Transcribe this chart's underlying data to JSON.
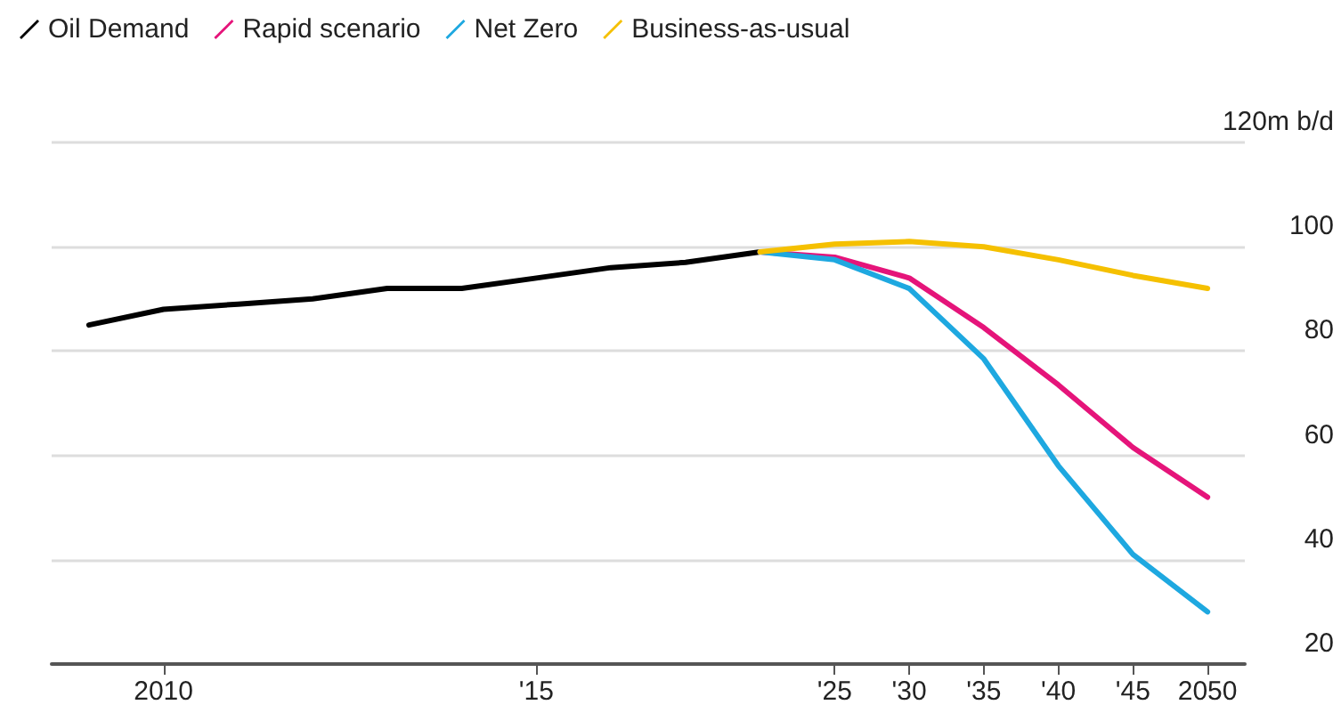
{
  "chart_data": {
    "type": "line",
    "categories": [
      null,
      "2010",
      null,
      null,
      null,
      null,
      "'15",
      null,
      null,
      null,
      "'25",
      "'30",
      "'35",
      "'40",
      "'45",
      "2050"
    ],
    "series": [
      {
        "name": "Oil Demand",
        "color": "#000000",
        "values": [
          85,
          88,
          89,
          90,
          92,
          92,
          94,
          96,
          97,
          99,
          null,
          null,
          null,
          null,
          null,
          null
        ]
      },
      {
        "name": "Rapid scenario",
        "color": "#e5147a",
        "values": [
          null,
          null,
          null,
          null,
          null,
          null,
          null,
          null,
          null,
          99,
          98,
          94,
          84.5,
          73.5,
          61.5,
          52
        ]
      },
      {
        "name": "Net Zero",
        "color": "#1ea8e0",
        "values": [
          null,
          null,
          null,
          null,
          null,
          null,
          null,
          null,
          null,
          99,
          97.5,
          92,
          78.5,
          58,
          41,
          30
        ]
      },
      {
        "name": "Business-as-usual",
        "color": "#f5c000",
        "values": [
          null,
          null,
          null,
          null,
          null,
          null,
          null,
          null,
          null,
          99,
          100.5,
          101,
          100,
          97.5,
          94.5,
          92
        ]
      }
    ],
    "ylim": [
      20,
      120
    ],
    "yticks": [
      20,
      40,
      60,
      80,
      100,
      {
        "value": 120,
        "label": "120m b/d"
      }
    ],
    "grid": "y",
    "legend": "top left",
    "marker": "none",
    "line_style": "solid"
  }
}
